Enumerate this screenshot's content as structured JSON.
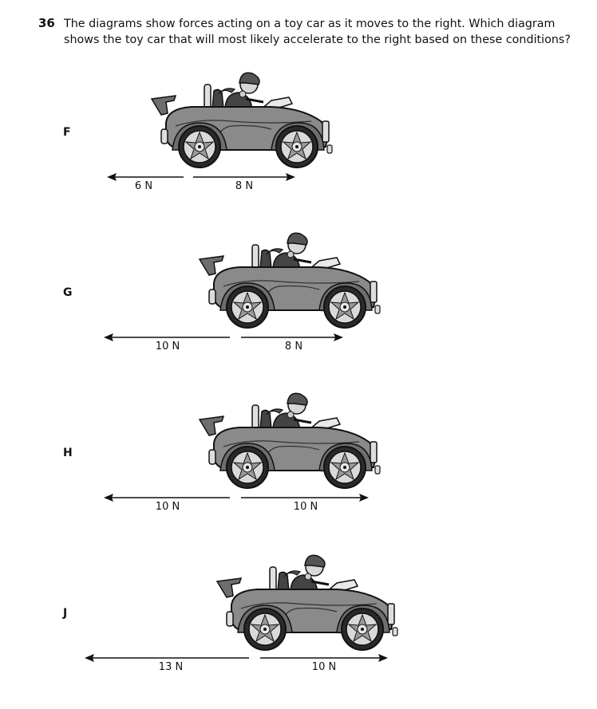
{
  "question": {
    "number": "36",
    "text": "The diagrams show forces acting on a toy car as it moves to the right. Which diagram shows the toy car that will most likely accelerate to the right based on these conditions?"
  },
  "options": [
    {
      "letter": "F",
      "left_force": "6 N",
      "right_force": "8 N",
      "left_newtons": 6,
      "right_newtons": 8
    },
    {
      "letter": "G",
      "left_force": "10 N",
      "right_force": "8 N",
      "left_newtons": 10,
      "right_newtons": 8
    },
    {
      "letter": "H",
      "left_force": "10 N",
      "right_force": "10 N",
      "left_newtons": 10,
      "right_newtons": 10
    },
    {
      "letter": "J",
      "left_force": "13 N",
      "right_force": "10 N",
      "left_newtons": 13,
      "right_newtons": 10
    }
  ],
  "colors": {
    "car_body": "#8a8a8a",
    "car_dark": "#3a3a3a",
    "outline": "#111111",
    "wheel_rim": "#d9d9d9"
  }
}
